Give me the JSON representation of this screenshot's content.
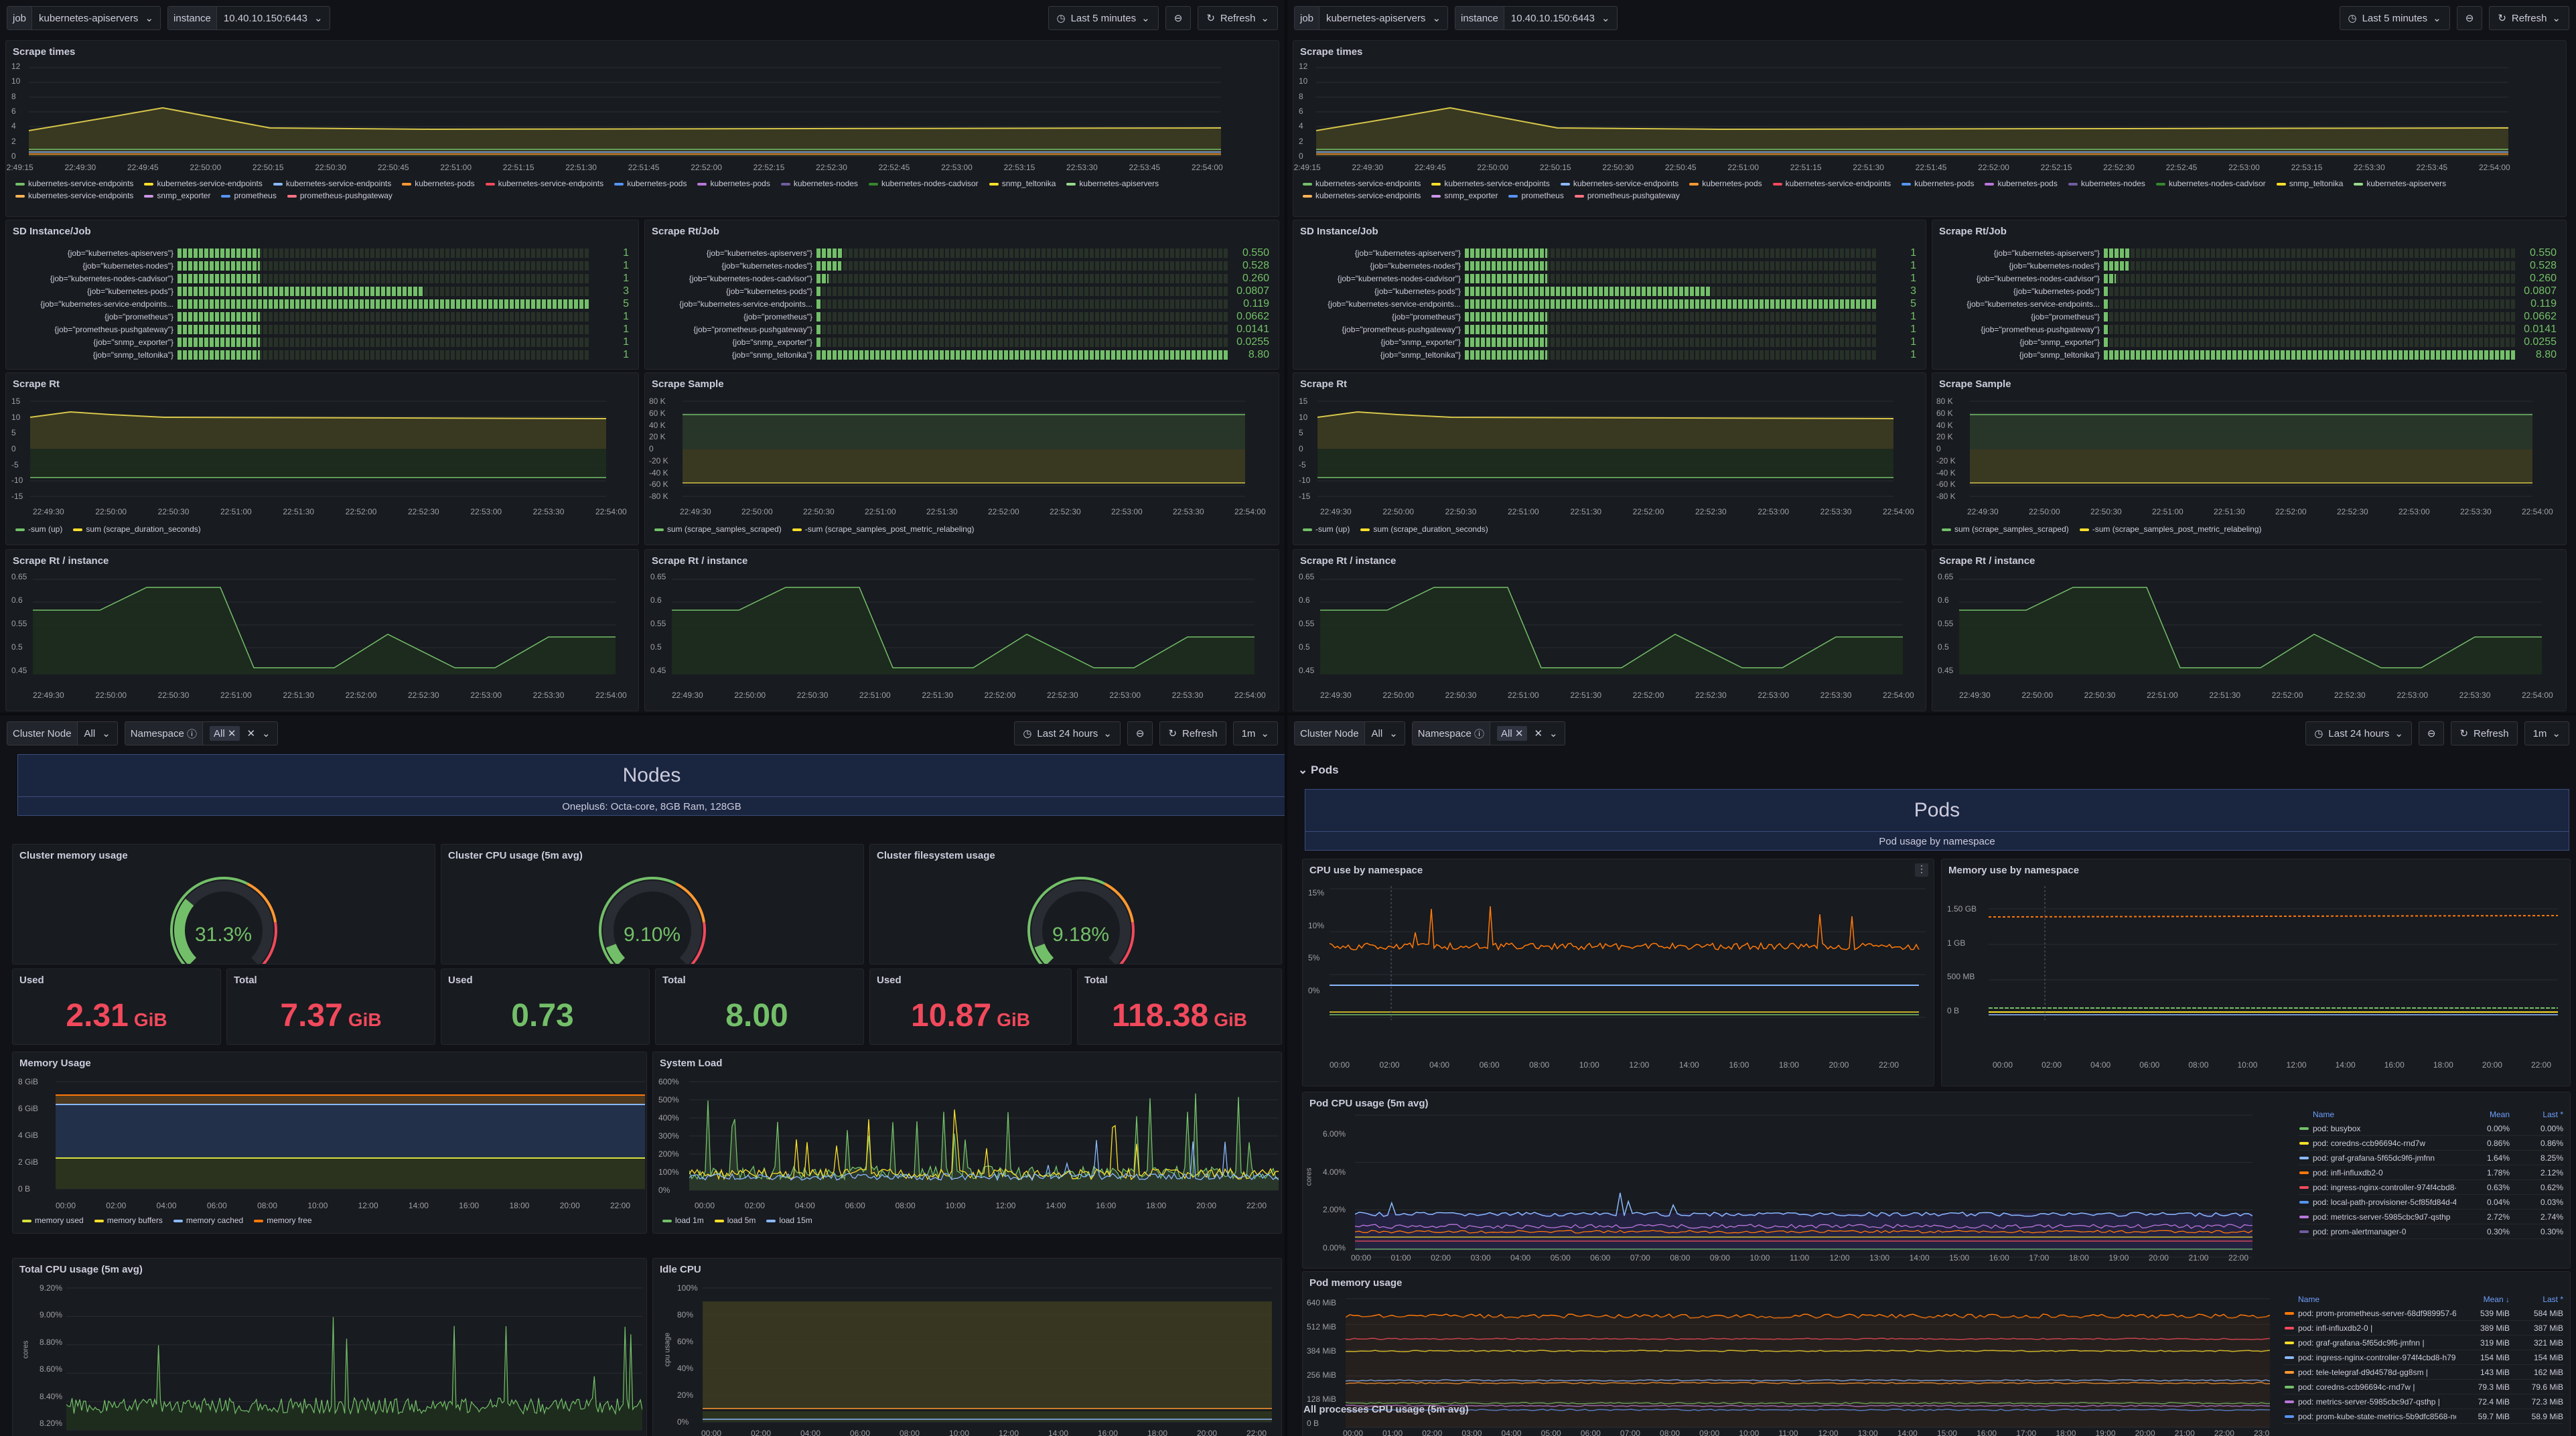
{
  "scrape_dashboard": {
    "job_label": "job",
    "job_value": "kubernetes-apiservers",
    "instance_label": "instance",
    "instance_value": "10.40.10.150:6443",
    "time_range": "Last 5 minutes",
    "refresh": "Refresh",
    "panels": {
      "scrape_times": "Scrape times",
      "sd_instance_job": "SD Instance/Job",
      "scrape_rt_job": "Scrape Rt/Job",
      "scrape_rt": "Scrape Rt",
      "scrape_sample": "Scrape Sample",
      "scrape_rt_instance": "Scrape Rt / instance"
    },
    "scrape_times_legend": [
      "kubernetes-service-endpoints",
      "kubernetes-service-endpoints",
      "kubernetes-service-endpoints",
      "kubernetes-pods",
      "kubernetes-service-endpoints",
      "kubernetes-pods",
      "kubernetes-pods",
      "kubernetes-nodes",
      "kubernetes-nodes-cadvisor",
      "snmp_teltonika",
      "kubernetes-apiservers",
      "kubernetes-service-endpoints",
      "snmp_exporter",
      "prometheus",
      "prometheus-pushgateway"
    ],
    "scrape_times_yticks": [
      "12",
      "10",
      "8",
      "6",
      "4",
      "2",
      "0"
    ],
    "scrape_times_xticks": [
      "22:49:15",
      "22:49:30",
      "22:49:45",
      "22:50:00",
      "22:50:15",
      "22:50:30",
      "22:50:45",
      "22:51:00",
      "22:51:15",
      "22:51:30",
      "22:51:45",
      "22:52:00",
      "22:52:15",
      "22:52:30",
      "22:52:45",
      "22:53:00",
      "22:53:15",
      "22:53:30",
      "22:53:45",
      "22:54:00"
    ],
    "sd_rows": [
      {
        "job": "{job=\"kubernetes-apiservers\"}",
        "value": "1"
      },
      {
        "job": "{job=\"kubernetes-nodes\"}",
        "value": "1"
      },
      {
        "job": "{job=\"kubernetes-nodes-cadvisor\"}",
        "value": "1"
      },
      {
        "job": "{job=\"kubernetes-pods\"}",
        "value": "3"
      },
      {
        "job": "{job=\"kubernetes-service-endpoints...",
        "value": "5"
      },
      {
        "job": "{job=\"prometheus\"}",
        "value": "1"
      },
      {
        "job": "{job=\"prometheus-pushgateway\"}",
        "value": "1"
      },
      {
        "job": "{job=\"snmp_exporter\"}",
        "value": "1"
      },
      {
        "job": "{job=\"snmp_teltonika\"}",
        "value": "1"
      }
    ],
    "rt_rows": [
      {
        "job": "{job=\"kubernetes-apiservers\"}",
        "value": "0.550"
      },
      {
        "job": "{job=\"kubernetes-nodes\"}",
        "value": "0.528"
      },
      {
        "job": "{job=\"kubernetes-nodes-cadvisor\"}",
        "value": "0.260"
      },
      {
        "job": "{job=\"kubernetes-pods\"}",
        "value": "0.0807"
      },
      {
        "job": "{job=\"kubernetes-service-endpoints...",
        "value": "0.119"
      },
      {
        "job": "{job=\"prometheus\"}",
        "value": "0.0662"
      },
      {
        "job": "{job=\"prometheus-pushgateway\"}",
        "value": "0.0141"
      },
      {
        "job": "{job=\"snmp_exporter\"}",
        "value": "0.0255"
      },
      {
        "job": "{job=\"snmp_teltonika\"}",
        "value": "8.80"
      }
    ],
    "scrape_rt_yticks": [
      "15",
      "10",
      "5",
      "0",
      "-5",
      "-10",
      "-15"
    ],
    "scrape_rt_legend": [
      "-sum (up)",
      "sum (scrape_duration_seconds)"
    ],
    "scrape_sample_yticks": [
      "80 K",
      "60 K",
      "40 K",
      "20 K",
      "0",
      "-20 K",
      "-40 K",
      "-60 K",
      "-80 K"
    ],
    "scrape_sample_legend": [
      "sum (scrape_samples_scraped)",
      "-sum (scrape_samples_post_metric_relabeling)"
    ],
    "half_xticks": [
      "22:49:30",
      "22:50:00",
      "22:50:30",
      "22:51:00",
      "22:51:30",
      "22:52:00",
      "22:52:30",
      "22:53:00",
      "22:53:30",
      "22:54:00"
    ],
    "instance_yticks": [
      "0.65",
      "0.6",
      "0.55",
      "0.5",
      "0.45"
    ]
  },
  "nodes_dashboard": {
    "cluster_label": "Cluster Node",
    "cluster_value": "All",
    "namespace_label": "Namespace",
    "namespace_value": "All",
    "time_range": "Last 24 hours",
    "refresh": "Refresh",
    "interval": "1m",
    "banner_title": "Nodes",
    "banner_sub": "Oneplus6: Octa-core, 8GB Ram, 128GB",
    "gauges": [
      {
        "title": "Cluster memory usage",
        "value": "31.3%",
        "pct": 31.3
      },
      {
        "title": "Cluster CPU usage (5m avg)",
        "value": "9.10%",
        "pct": 9.1
      },
      {
        "title": "Cluster filesystem usage",
        "value": "9.18%",
        "pct": 9.18
      }
    ],
    "stats": [
      {
        "label": "Used",
        "value": "2.31",
        "unit": "GiB",
        "color": "#f2495c"
      },
      {
        "label": "Total",
        "value": "7.37",
        "unit": "GiB",
        "color": "#f2495c"
      },
      {
        "label": "Used",
        "value": "0.73",
        "unit": "",
        "color": "#73bf69"
      },
      {
        "label": "Total",
        "value": "8.00",
        "unit": "",
        "color": "#73bf69"
      },
      {
        "label": "Used",
        "value": "10.87",
        "unit": "GiB",
        "color": "#f2495c"
      },
      {
        "label": "Total",
        "value": "118.38",
        "unit": "GiB",
        "color": "#f2495c"
      }
    ],
    "memory_usage": {
      "title": "Memory Usage",
      "yticks": [
        "8 GiB",
        "6 GiB",
        "4 GiB",
        "2 GiB",
        "0 B"
      ],
      "legend": [
        "memory used",
        "memory buffers",
        "memory cached",
        "memory free"
      ]
    },
    "system_load": {
      "title": "System Load",
      "yticks": [
        "600%",
        "500%",
        "400%",
        "300%",
        "200%",
        "100%",
        "0%"
      ],
      "legend": [
        "load 1m",
        "load 5m",
        "load 15m"
      ]
    },
    "day_xticks": [
      "00:00",
      "02:00",
      "04:00",
      "06:00",
      "08:00",
      "10:00",
      "12:00",
      "14:00",
      "16:00",
      "18:00",
      "20:00",
      "22:00"
    ],
    "total_cpu": {
      "title": "Total CPU usage (5m avg)",
      "yticks": [
        "9.20%",
        "9.00%",
        "8.80%",
        "8.60%",
        "8.40%",
        "8.20%"
      ],
      "yaxis": "cores"
    },
    "idle_cpu": {
      "title": "Idle CPU",
      "yticks": [
        "100%",
        "80%",
        "60%",
        "40%",
        "20%",
        "0%"
      ],
      "yaxis": "cpu usage"
    }
  },
  "pods_dashboard": {
    "row_title": "Pods",
    "banner_title": "Pods",
    "banner_sub": "Pod usage by namespace",
    "cpu_ns": {
      "title": "CPU use by namespace",
      "yticks": [
        "15%",
        "10%",
        "5%",
        "0%"
      ]
    },
    "mem_ns": {
      "title": "Memory use by namespace",
      "yticks": [
        "1.50 GB",
        "1 GB",
        "500 MB",
        "0 B"
      ]
    },
    "pod_cpu": {
      "title": "Pod CPU usage (5m avg)",
      "yticks": [
        "6.00%",
        "4.00%",
        "2.00%",
        "0.00%"
      ],
      "yaxis": "cores",
      "xticks": [
        "00:00",
        "01:00",
        "02:00",
        "03:00",
        "04:00",
        "05:00",
        "06:00",
        "07:00",
        "08:00",
        "09:00",
        "10:00",
        "11:00",
        "12:00",
        "13:00",
        "14:00",
        "15:00",
        "16:00",
        "17:00",
        "18:00",
        "19:00",
        "20:00",
        "21:00",
        "22:00"
      ],
      "hdr_name": "Name",
      "hdr_mean": "Mean",
      "hdr_last": "Last *",
      "rows": [
        {
          "name": "pod: busybox",
          "mean": "0.00%",
          "last": "0.00%",
          "color": "#73bf69"
        },
        {
          "name": "pod: coredns-ccb96694c-rnd7w",
          "mean": "0.86%",
          "last": "0.86%",
          "color": "#fade2a"
        },
        {
          "name": "pod: graf-grafana-5f65dc9f6-jmfnn",
          "mean": "1.64%",
          "last": "8.25%",
          "color": "#8ab8ff"
        },
        {
          "name": "pod: infl-influxdb2-0",
          "mean": "1.78%",
          "last": "2.12%",
          "color": "#ff780a"
        },
        {
          "name": "pod: ingress-nginx-controller-974f4cbd8-h79l",
          "mean": "0.63%",
          "last": "0.62%",
          "color": "#f2495c"
        },
        {
          "name": "pod: local-path-provisioner-5cf85fd84d-48j25",
          "mean": "0.04%",
          "last": "0.03%",
          "color": "#5794f2"
        },
        {
          "name": "pod: metrics-server-5985cbc9d7-qsthp",
          "mean": "2.72%",
          "last": "2.74%",
          "color": "#b877d9"
        },
        {
          "name": "pod: prom-alertmanager-0",
          "mean": "0.30%",
          "last": "0.30%",
          "color": "#705da0"
        }
      ]
    },
    "pod_mem": {
      "title": "Pod memory usage",
      "yticks": [
        "640 MiB",
        "512 MiB",
        "384 MiB",
        "256 MiB",
        "128 MiB",
        "0 B"
      ],
      "xticks": [
        "00:00",
        "01:00",
        "02:00",
        "03:00",
        "04:00",
        "05:00",
        "06:00",
        "07:00",
        "08:00",
        "09:00",
        "10:00",
        "11:00",
        "12:00",
        "13:00",
        "14:00",
        "15:00",
        "16:00",
        "17:00",
        "18:00",
        "19:00",
        "20:00",
        "21:00",
        "22:00",
        "23:0"
      ],
      "hdr_name": "Name",
      "hdr_mean": "Mean ↓",
      "hdr_last": "Last *",
      "rows": [
        {
          "name": "pod: prom-prometheus-server-68df989957-6k47b |",
          "mean": "539 MiB",
          "last": "584 MiB",
          "color": "#ff780a"
        },
        {
          "name": "pod: infl-influxdb2-0 |",
          "mean": "389 MiB",
          "last": "387 MiB",
          "color": "#f2495c"
        },
        {
          "name": "pod: graf-grafana-5f65dc9f6-jmfnn |",
          "mean": "319 MiB",
          "last": "321 MiB",
          "color": "#fade2a"
        },
        {
          "name": "pod: ingress-nginx-controller-974f4cbd8-h79l |",
          "mean": "154 MiB",
          "last": "154 MiB",
          "color": "#8ab8ff"
        },
        {
          "name": "pod: tele-telegraf-d9d4578d-gg8sm |",
          "mean": "143 MiB",
          "last": "162 MiB",
          "color": "#ff9830"
        },
        {
          "name": "pod: coredns-ccb96694c-rnd7w |",
          "mean": "79.3 MiB",
          "last": "79.6 MiB",
          "color": "#73bf69"
        },
        {
          "name": "pod: metrics-server-5985cbc9d7-qsthp |",
          "mean": "72.4 MiB",
          "last": "72.3 MiB",
          "color": "#b877d9"
        },
        {
          "name": "pod: prom-kube-state-metrics-5b9dfc8568-noxua |",
          "mean": "59.7 MiB",
          "last": "58.9 MiB",
          "color": "#5794f2"
        }
      ]
    },
    "all_proc_title": "All processes CPU usage (5m avg)"
  }
}
